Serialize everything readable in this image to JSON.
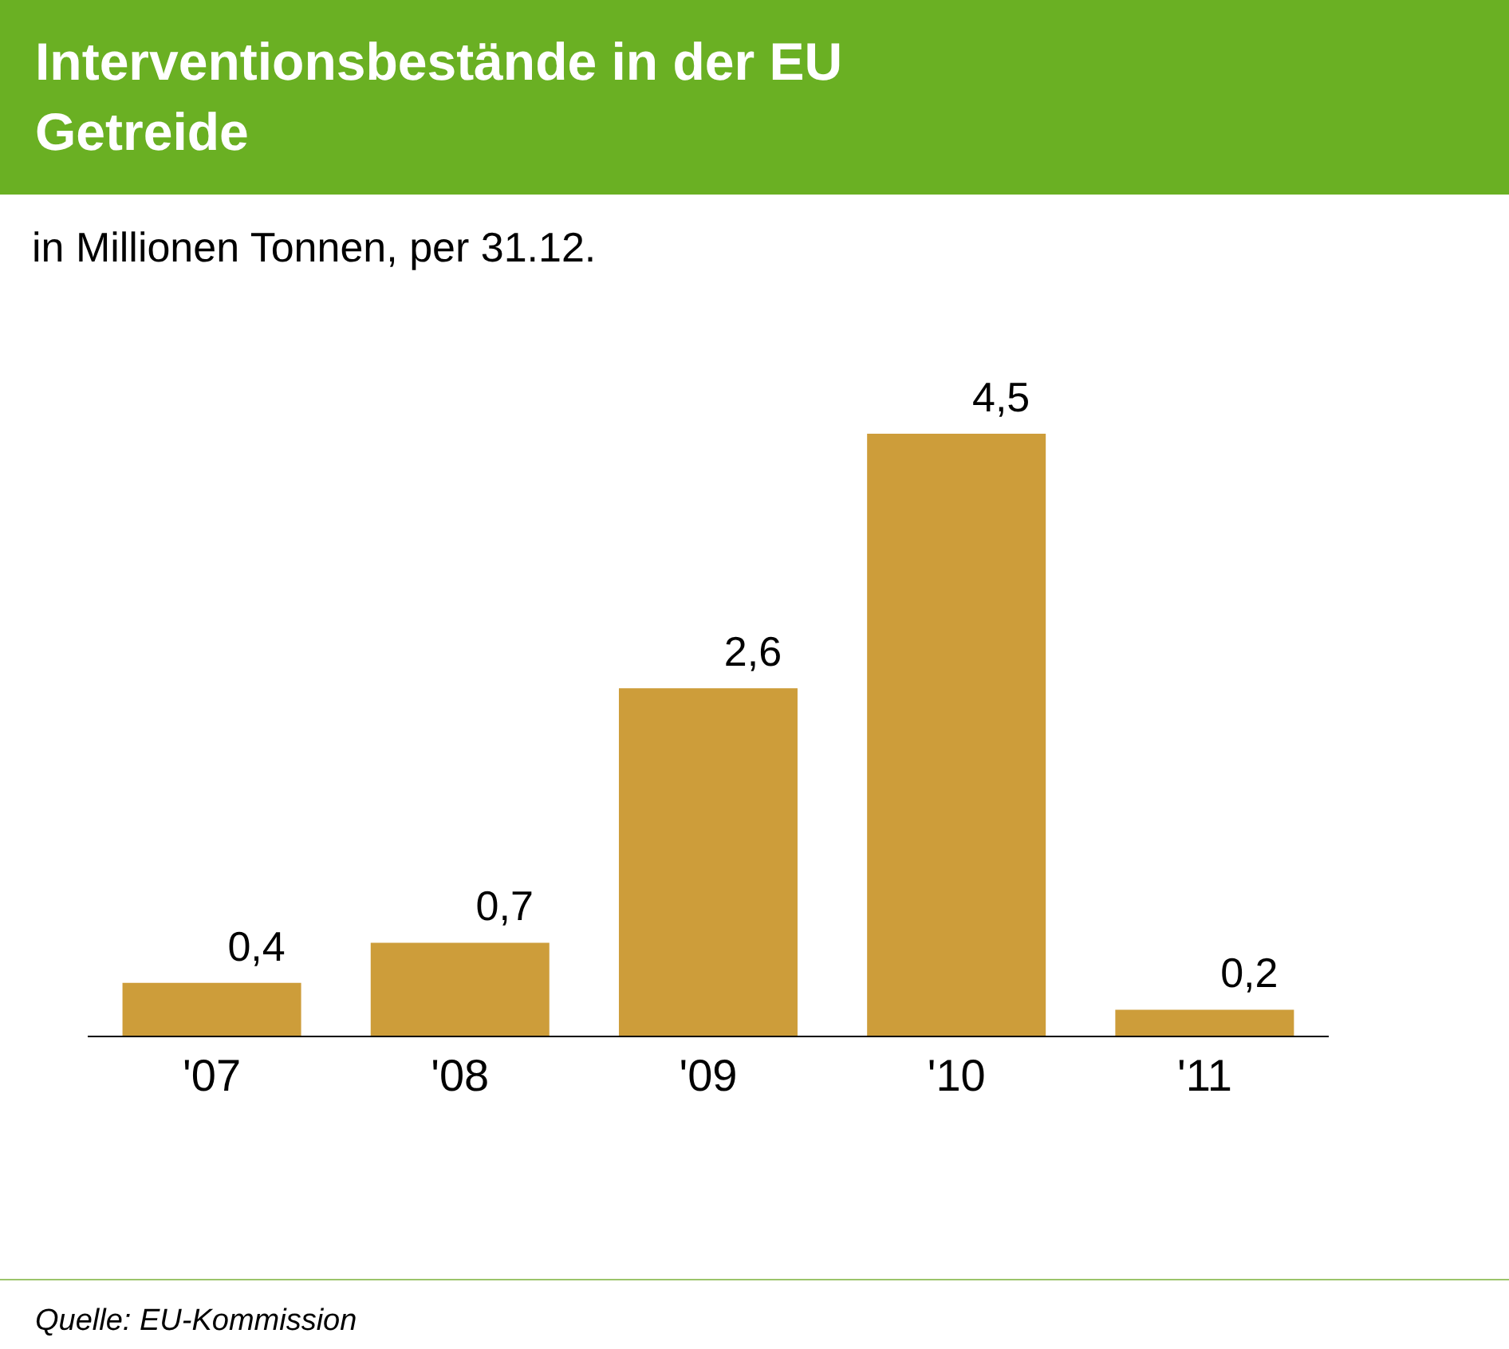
{
  "chart_data": {
    "type": "bar",
    "title": "Interventionsbestände in der EU",
    "subtitle": "Getreide",
    "ylabel": "in Millionen Tonnen, per 31.12.",
    "categories": [
      "'07",
      "'08",
      "'09",
      "'10",
      "'11"
    ],
    "values": [
      0.4,
      0.7,
      2.6,
      4.5,
      0.2
    ],
    "value_labels": [
      "0,4",
      "0,7",
      "2,6",
      "4,5",
      "0,2"
    ],
    "color": "#cd9d3a",
    "annotations": [
      "Quelle: EU-Kommission"
    ]
  }
}
